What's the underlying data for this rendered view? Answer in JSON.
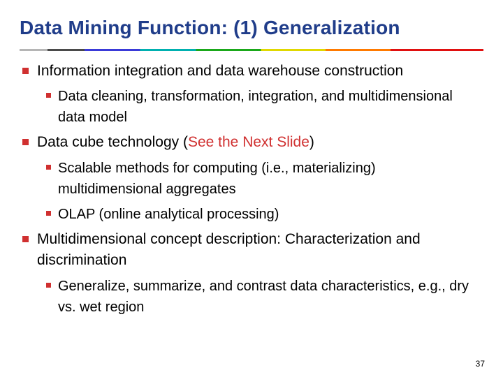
{
  "title": "Data Mining Function: (1) Generalization",
  "bullets": {
    "b1": "Information integration and data warehouse construction",
    "b1_1": "Data cleaning, transformation, integration, and multidimensional data model",
    "b2_pre": "Data cube technology (",
    "b2_red": "See the Next Slide",
    "b2_post": ")",
    "b2_1": "Scalable methods for computing (i.e., materializing) multidimensional aggregates",
    "b2_2": "OLAP (online analytical processing)",
    "b3": "Multidimensional concept description: Characterization and discrimination",
    "b3_1": "Generalize, summarize, and contrast data characteristics, e.g., dry vs. wet region"
  },
  "page_number": "37",
  "colors": {
    "title_color": "#203d8a",
    "bullet_color": "#d03030",
    "highlight_color": "#d03030",
    "body_color": "#000000",
    "background": "#ffffff"
  },
  "typography": {
    "title_fontsize": 28,
    "l1_fontsize": 21,
    "l2_fontsize": 20,
    "page_num_fontsize": 12,
    "font_family": "Arial"
  }
}
